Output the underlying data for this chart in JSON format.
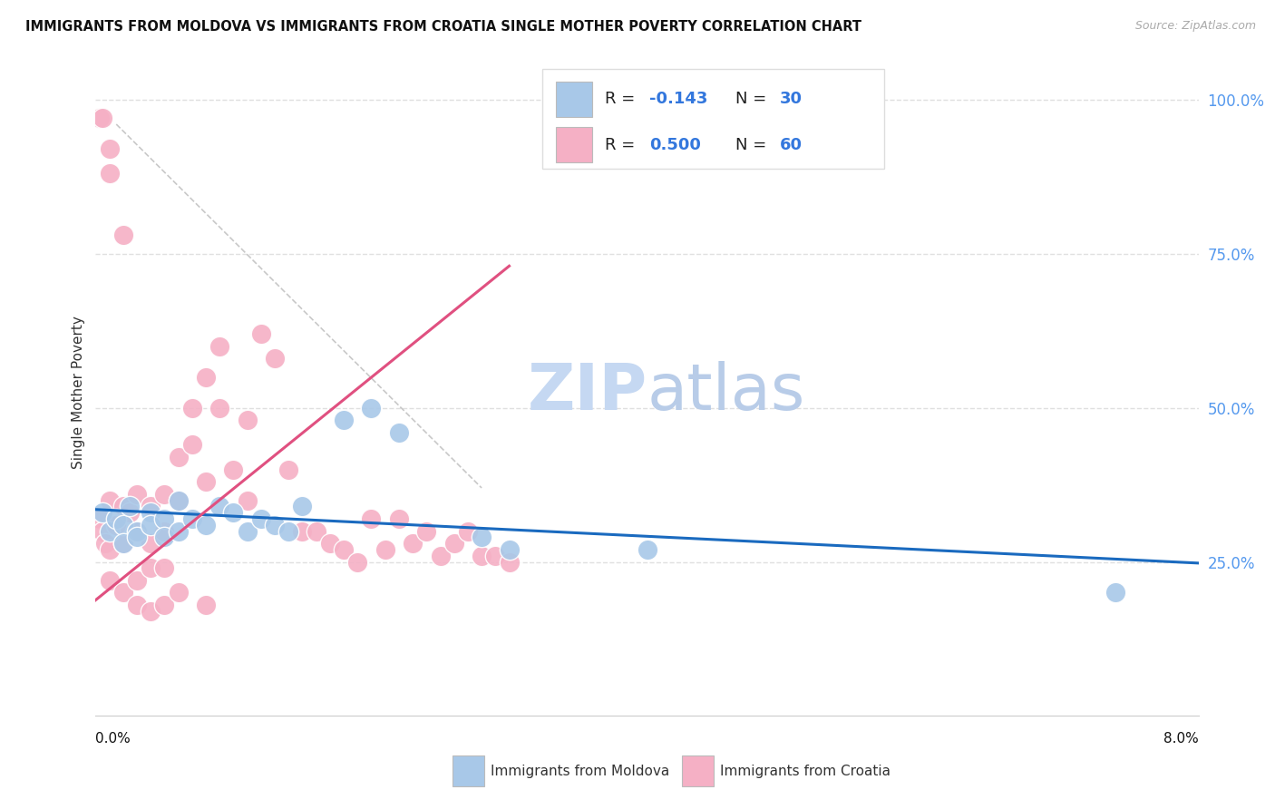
{
  "title": "IMMIGRANTS FROM MOLDOVA VS IMMIGRANTS FROM CROATIA SINGLE MOTHER POVERTY CORRELATION CHART",
  "source": "Source: ZipAtlas.com",
  "ylabel": "Single Mother Poverty",
  "legend_label_moldova": "Immigrants from Moldova",
  "legend_label_croatia": "Immigrants from Croatia",
  "r_moldova": -0.143,
  "n_moldova": 30,
  "r_croatia": 0.5,
  "n_croatia": 60,
  "moldova_color": "#a8c8e8",
  "croatia_color": "#f5b0c5",
  "moldova_line_color": "#1a6abf",
  "croatia_line_color": "#e05080",
  "watermark_zip_color": "#c8d8f0",
  "watermark_atlas_color": "#c0d5f0",
  "background_color": "#ffffff",
  "grid_color": "#e0e0e0",
  "right_axis_color": "#5599ee",
  "xlim": [
    0.0,
    0.08
  ],
  "ylim": [
    0.0,
    1.05
  ],
  "moldova_x": [
    0.0005,
    0.001,
    0.0015,
    0.002,
    0.002,
    0.0025,
    0.003,
    0.003,
    0.004,
    0.004,
    0.005,
    0.005,
    0.006,
    0.006,
    0.007,
    0.008,
    0.009,
    0.01,
    0.011,
    0.012,
    0.013,
    0.014,
    0.015,
    0.018,
    0.02,
    0.022,
    0.028,
    0.03,
    0.04,
    0.074
  ],
  "moldova_y": [
    0.33,
    0.3,
    0.32,
    0.31,
    0.28,
    0.34,
    0.3,
    0.29,
    0.33,
    0.31,
    0.32,
    0.29,
    0.35,
    0.3,
    0.32,
    0.31,
    0.34,
    0.33,
    0.3,
    0.32,
    0.31,
    0.3,
    0.34,
    0.48,
    0.5,
    0.46,
    0.29,
    0.27,
    0.27,
    0.2
  ],
  "croatia_x": [
    0.0003,
    0.0005,
    0.0007,
    0.001,
    0.001,
    0.001,
    0.0015,
    0.002,
    0.002,
    0.002,
    0.0025,
    0.003,
    0.003,
    0.003,
    0.004,
    0.004,
    0.004,
    0.005,
    0.005,
    0.005,
    0.006,
    0.006,
    0.007,
    0.007,
    0.008,
    0.008,
    0.009,
    0.009,
    0.01,
    0.011,
    0.011,
    0.012,
    0.013,
    0.014,
    0.015,
    0.016,
    0.017,
    0.018,
    0.019,
    0.02,
    0.021,
    0.022,
    0.023,
    0.024,
    0.025,
    0.026,
    0.027,
    0.028,
    0.029,
    0.03,
    0.0003,
    0.0005,
    0.001,
    0.001,
    0.002,
    0.003,
    0.004,
    0.005,
    0.006,
    0.008
  ],
  "croatia_y": [
    0.32,
    0.3,
    0.28,
    0.35,
    0.27,
    0.22,
    0.31,
    0.34,
    0.28,
    0.2,
    0.33,
    0.3,
    0.22,
    0.36,
    0.34,
    0.28,
    0.24,
    0.36,
    0.3,
    0.24,
    0.42,
    0.35,
    0.5,
    0.44,
    0.55,
    0.38,
    0.5,
    0.6,
    0.4,
    0.48,
    0.35,
    0.62,
    0.58,
    0.4,
    0.3,
    0.3,
    0.28,
    0.27,
    0.25,
    0.32,
    0.27,
    0.32,
    0.28,
    0.3,
    0.26,
    0.28,
    0.3,
    0.26,
    0.26,
    0.25,
    0.97,
    0.97,
    0.92,
    0.88,
    0.78,
    0.18,
    0.17,
    0.18,
    0.2,
    0.18
  ],
  "mol_line_x0": 0.0,
  "mol_line_x1": 0.08,
  "mol_line_y0": 0.335,
  "mol_line_y1": 0.248,
  "cro_line_x0": -0.001,
  "cro_line_x1": 0.03,
  "cro_line_y0": 0.17,
  "cro_line_y1": 0.73,
  "dash_line_x0": 0.0015,
  "dash_line_x1": 0.028,
  "dash_line_y0": 0.96,
  "dash_line_y1": 0.37
}
